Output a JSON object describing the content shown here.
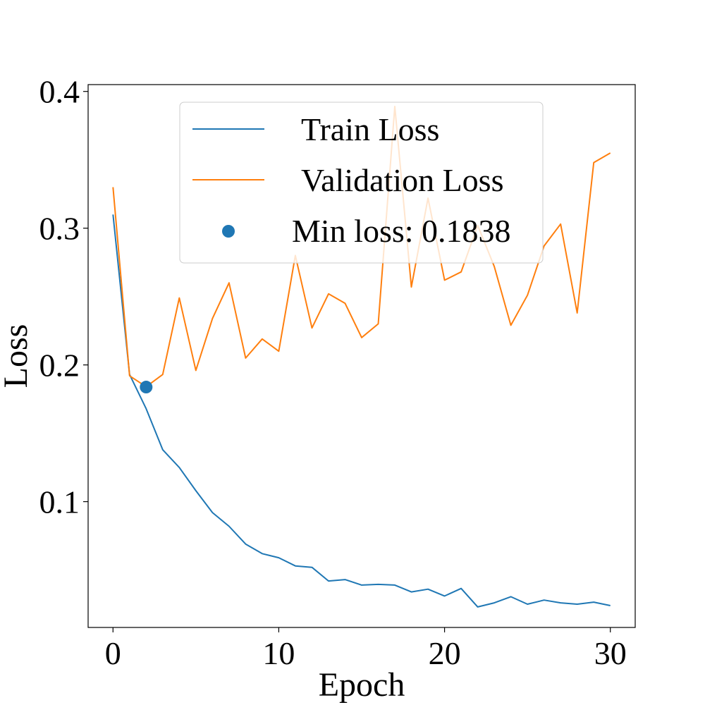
{
  "chart_data": {
    "type": "line",
    "title": "",
    "xlabel": "Epoch",
    "ylabel": "Loss",
    "xlim": [
      -1.5,
      31.5
    ],
    "ylim": [
      0.008,
      0.405
    ],
    "xticks": [
      0,
      10,
      20,
      30
    ],
    "xtick_labels": [
      "0",
      "10",
      "20",
      "30"
    ],
    "yticks": [
      0.1,
      0.2,
      0.3,
      0.4
    ],
    "ytick_labels": [
      "0.1",
      "0.2",
      "0.3",
      "0.4"
    ],
    "grid": false,
    "legend_position": "top-center",
    "x": [
      0,
      1,
      2,
      3,
      4,
      5,
      6,
      7,
      8,
      9,
      10,
      11,
      12,
      13,
      14,
      15,
      16,
      17,
      18,
      19,
      20,
      21,
      22,
      23,
      24,
      25,
      26,
      27,
      28,
      29,
      30
    ],
    "series": [
      {
        "name": "Train Loss",
        "color": "#1f77b4",
        "values": [
          0.31,
          0.193,
          0.168,
          0.138,
          0.125,
          0.108,
          0.092,
          0.082,
          0.069,
          0.062,
          0.059,
          0.053,
          0.052,
          0.042,
          0.043,
          0.039,
          0.0395,
          0.039,
          0.034,
          0.036,
          0.031,
          0.0365,
          0.023,
          0.026,
          0.0305,
          0.025,
          0.028,
          0.026,
          0.025,
          0.0265,
          0.024
        ]
      },
      {
        "name": "Validation Loss",
        "color": "#ff7f0e",
        "values": [
          0.33,
          0.192,
          0.184,
          0.193,
          0.249,
          0.196,
          0.234,
          0.26,
          0.205,
          0.219,
          0.21,
          0.28,
          0.227,
          0.252,
          0.245,
          0.22,
          0.23,
          0.389,
          0.257,
          0.322,
          0.262,
          0.268,
          0.302,
          0.272,
          0.229,
          0.251,
          0.287,
          0.303,
          0.238,
          0.348,
          0.355
        ]
      }
    ],
    "marker": {
      "label": "Min loss: 0.1838",
      "x": 2,
      "y": 0.1838,
      "color": "#1f77b4"
    }
  }
}
